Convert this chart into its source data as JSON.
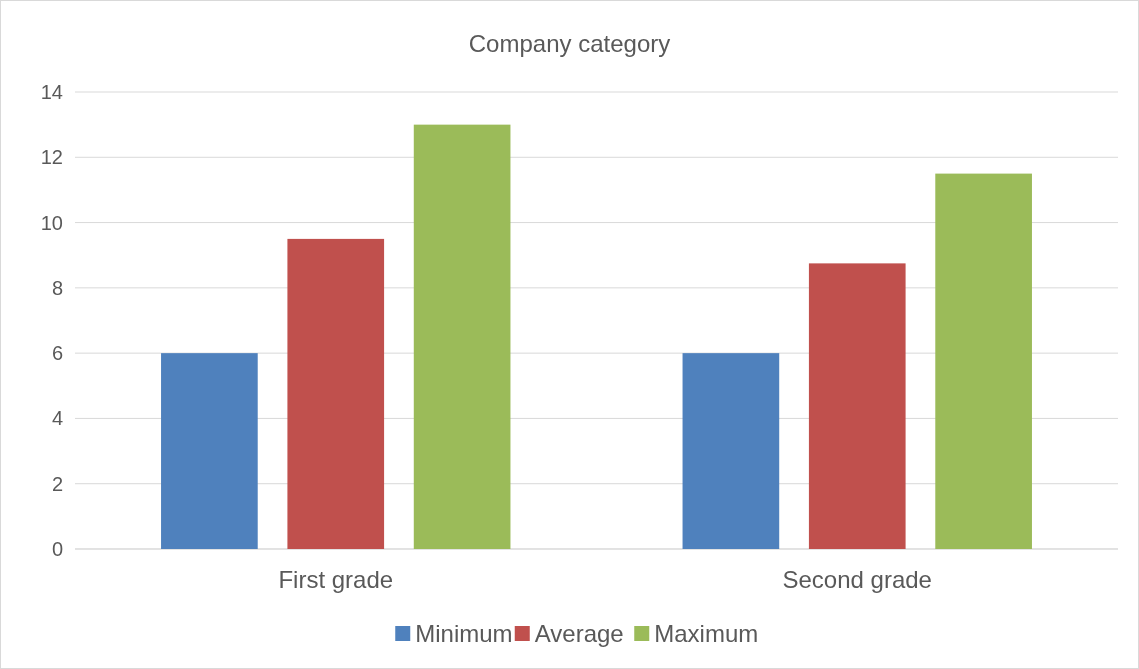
{
  "chart_data": {
    "type": "bar",
    "title": "Company category",
    "categories": [
      "First grade",
      "Second grade"
    ],
    "series": [
      {
        "name": "Minimum",
        "color": "#4f81bd",
        "values": [
          6,
          6
        ]
      },
      {
        "name": "Average",
        "color": "#c0504d",
        "values": [
          9.5,
          8.75
        ]
      },
      {
        "name": "Maximum",
        "color": "#9bbb59",
        "values": [
          13,
          11.5
        ]
      }
    ],
    "ylim": [
      0,
      14
    ],
    "yticks": [
      0,
      2,
      4,
      6,
      8,
      10,
      12,
      14
    ],
    "grid": "y",
    "legend": "bottom"
  }
}
